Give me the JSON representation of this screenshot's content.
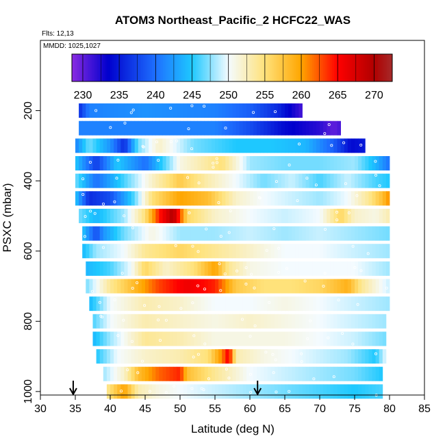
{
  "chart_data": {
    "type": "heatmap",
    "title": "ATOM3 Northeast_Pacific_2 HCFC22_WAS",
    "subtitle_flights": "Flts: 12,13",
    "subtitle_dates": "MMDD: 1025,1027",
    "xlabel": "Latitude (deg N)",
    "ylabel": "PSXC (mbar)",
    "xlim": [
      30,
      85
    ],
    "ylim": [
      1010,
      0
    ],
    "y_reversed": true,
    "x_ticks": [
      "30",
      "35",
      "40",
      "45",
      "50",
      "55",
      "60",
      "65",
      "70",
      "75",
      "80",
      "85"
    ],
    "y_ticks": [
      "200",
      "400",
      "600",
      "800",
      "1000"
    ],
    "colorbar": {
      "min": 228.5,
      "max": 272.5,
      "ticks": [
        "230",
        "235",
        "240",
        "245",
        "250",
        "255",
        "260",
        "265",
        "270"
      ],
      "stops": [
        {
          "v": 228.5,
          "c": "#8a2be2"
        },
        {
          "v": 233.5,
          "c": "#0000cd"
        },
        {
          "v": 240,
          "c": "#1e70ff"
        },
        {
          "v": 245,
          "c": "#1ec8ff"
        },
        {
          "v": 250,
          "c": "#f4fbff"
        },
        {
          "v": 255,
          "c": "#ffe27a"
        },
        {
          "v": 260,
          "c": "#ffa500"
        },
        {
          "v": 265,
          "c": "#ff0000"
        },
        {
          "v": 270,
          "c": "#b00000"
        },
        {
          "v": 272.5,
          "c": "#a52a2a"
        }
      ]
    },
    "markers_latitude": [
      34.7,
      61.1
    ],
    "rows": [
      {
        "p": 200,
        "x0": 35.5,
        "x1": 67.5,
        "knots": [
          [
            35.5,
            236
          ],
          [
            37,
            241
          ],
          [
            45,
            242
          ],
          [
            55,
            241
          ],
          [
            60,
            239
          ],
          [
            64,
            236
          ],
          [
            66,
            233
          ],
          [
            67.5,
            231
          ]
        ]
      },
      {
        "p": 250,
        "x0": 35.5,
        "x1": 73,
        "knots": [
          [
            35.5,
            241
          ],
          [
            45,
            241
          ],
          [
            55,
            241
          ],
          [
            60,
            238
          ],
          [
            65,
            234
          ],
          [
            70,
            232
          ],
          [
            72,
            230
          ],
          [
            73,
            231
          ]
        ]
      },
      {
        "p": 300,
        "x0": 35,
        "x1": 76.5,
        "knots": [
          [
            35,
            241
          ],
          [
            37,
            247
          ],
          [
            40,
            242
          ],
          [
            42,
            236
          ],
          [
            44,
            247
          ],
          [
            47,
            252
          ],
          [
            52,
            247
          ],
          [
            58,
            245
          ],
          [
            63,
            245
          ],
          [
            68,
            244
          ],
          [
            72,
            239
          ],
          [
            74.5,
            234
          ],
          [
            76.5,
            235
          ]
        ]
      },
      {
        "p": 350,
        "x0": 35,
        "x1": 80,
        "knots": [
          [
            35,
            245
          ],
          [
            38,
            237
          ],
          [
            41,
            245
          ],
          [
            45,
            240
          ],
          [
            50,
            251
          ],
          [
            56,
            255
          ],
          [
            60,
            248
          ],
          [
            65,
            247
          ],
          [
            70,
            247
          ],
          [
            75,
            248
          ],
          [
            78,
            244
          ],
          [
            80,
            240
          ]
        ]
      },
      {
        "p": 400,
        "x0": 35,
        "x1": 80,
        "knots": [
          [
            35,
            247
          ],
          [
            38,
            240
          ],
          [
            42,
            246
          ],
          [
            46,
            252
          ],
          [
            50,
            257
          ],
          [
            54,
            253
          ],
          [
            58,
            250
          ],
          [
            62,
            247
          ],
          [
            66,
            249
          ],
          [
            70,
            246
          ],
          [
            74,
            249
          ],
          [
            78,
            246
          ],
          [
            80,
            245
          ]
        ]
      },
      {
        "p": 450,
        "x0": 35,
        "x1": 80,
        "knots": [
          [
            35,
            245
          ],
          [
            37,
            236
          ],
          [
            40,
            238
          ],
          [
            43,
            245
          ],
          [
            46,
            255
          ],
          [
            50,
            260
          ],
          [
            54,
            258
          ],
          [
            58,
            252
          ],
          [
            62,
            250
          ],
          [
            66,
            249
          ],
          [
            70,
            248
          ],
          [
            74,
            250
          ],
          [
            77,
            254
          ],
          [
            79,
            258
          ],
          [
            80,
            261
          ]
        ]
      },
      {
        "p": 500,
        "x0": 35.5,
        "x1": 80,
        "knots": [
          [
            35.5,
            247
          ],
          [
            38,
            244
          ],
          [
            42,
            248
          ],
          [
            45,
            255
          ],
          [
            47,
            264
          ],
          [
            49,
            270
          ],
          [
            51,
            256
          ],
          [
            55,
            252
          ],
          [
            60,
            250
          ],
          [
            65,
            249
          ],
          [
            70,
            250
          ],
          [
            73,
            256
          ],
          [
            75,
            252
          ],
          [
            78,
            251
          ],
          [
            80,
            253
          ]
        ]
      },
      {
        "p": 550,
        "x0": 36,
        "x1": 80,
        "knots": [
          [
            36,
            245
          ],
          [
            38,
            238
          ],
          [
            39,
            242
          ],
          [
            42,
            247
          ],
          [
            46,
            251
          ],
          [
            50,
            248
          ],
          [
            55,
            248
          ],
          [
            60,
            249
          ],
          [
            65,
            248
          ],
          [
            70,
            249
          ],
          [
            75,
            248
          ],
          [
            80,
            247
          ]
        ]
      },
      {
        "p": 600,
        "x0": 36,
        "x1": 80,
        "knots": [
          [
            36,
            244
          ],
          [
            38,
            248
          ],
          [
            42,
            250
          ],
          [
            45,
            254
          ],
          [
            50,
            256
          ],
          [
            55,
            254
          ],
          [
            60,
            252
          ],
          [
            65,
            250
          ],
          [
            70,
            250
          ],
          [
            75,
            249
          ],
          [
            80,
            248
          ]
        ]
      },
      {
        "p": 650,
        "x0": 36.5,
        "x1": 80,
        "knots": [
          [
            36.5,
            244
          ],
          [
            40,
            246
          ],
          [
            43,
            250
          ],
          [
            45,
            256
          ],
          [
            48,
            252
          ],
          [
            52,
            255
          ],
          [
            55,
            260
          ],
          [
            57,
            254
          ],
          [
            60,
            251
          ],
          [
            65,
            250
          ],
          [
            70,
            250
          ],
          [
            75,
            250
          ],
          [
            80,
            248
          ]
        ]
      },
      {
        "p": 700,
        "x0": 36.5,
        "x1": 80,
        "knots": [
          [
            36.5,
            247
          ],
          [
            40,
            254
          ],
          [
            44,
            259
          ],
          [
            47,
            263
          ],
          [
            51,
            266
          ],
          [
            55,
            264
          ],
          [
            58,
            257
          ],
          [
            62,
            255
          ],
          [
            66,
            255
          ],
          [
            70,
            256
          ],
          [
            74,
            259
          ],
          [
            76,
            254
          ],
          [
            79,
            250
          ],
          [
            80,
            249
          ]
        ]
      },
      {
        "p": 750,
        "x0": 37,
        "x1": 80,
        "knots": [
          [
            37,
            244
          ],
          [
            40,
            250
          ],
          [
            45,
            253
          ],
          [
            50,
            252
          ],
          [
            55,
            250
          ],
          [
            60,
            250
          ],
          [
            65,
            251
          ],
          [
            70,
            250
          ],
          [
            75,
            249
          ],
          [
            80,
            248
          ]
        ]
      },
      {
        "p": 800,
        "x0": 37.5,
        "x1": 79.5,
        "knots": [
          [
            37.5,
            246
          ],
          [
            40,
            250
          ],
          [
            45,
            253
          ],
          [
            50,
            252
          ],
          [
            55,
            251
          ],
          [
            60,
            252
          ],
          [
            65,
            251
          ],
          [
            70,
            250
          ],
          [
            75,
            249
          ],
          [
            79.5,
            248
          ]
        ]
      },
      {
        "p": 850,
        "x0": 37.5,
        "x1": 79.5,
        "knots": [
          [
            37.5,
            244
          ],
          [
            40,
            248
          ],
          [
            45,
            254
          ],
          [
            50,
            253
          ],
          [
            55,
            251
          ],
          [
            60,
            251
          ],
          [
            65,
            251
          ],
          [
            70,
            250
          ],
          [
            75,
            249
          ],
          [
            79.5,
            247
          ]
        ]
      },
      {
        "p": 900,
        "x0": 38,
        "x1": 79.5,
        "knots": [
          [
            38,
            245
          ],
          [
            41,
            250
          ],
          [
            45,
            252
          ],
          [
            50,
            253
          ],
          [
            54,
            255
          ],
          [
            56,
            261
          ],
          [
            57,
            266
          ],
          [
            58,
            253
          ],
          [
            62,
            251
          ],
          [
            66,
            250
          ],
          [
            70,
            249
          ],
          [
            74,
            248
          ],
          [
            78,
            245
          ],
          [
            79.5,
            250
          ]
        ]
      },
      {
        "p": 950,
        "x0": 39,
        "x1": 79,
        "knots": [
          [
            39,
            248
          ],
          [
            42,
            252
          ],
          [
            44,
            258
          ],
          [
            47,
            262
          ],
          [
            50,
            264
          ],
          [
            51,
            258
          ],
          [
            55,
            254
          ],
          [
            60,
            250
          ],
          [
            65,
            249
          ],
          [
            70,
            248
          ],
          [
            75,
            247
          ],
          [
            79,
            245
          ]
        ]
      },
      {
        "p": 1000,
        "x0": 39.5,
        "x1": 79,
        "knots": [
          [
            39.5,
            254
          ],
          [
            42,
            260
          ],
          [
            44,
            253
          ],
          [
            47,
            251
          ],
          [
            50,
            250
          ],
          [
            55,
            249
          ],
          [
            60,
            248
          ],
          [
            65,
            247
          ],
          [
            70,
            246
          ],
          [
            75,
            245
          ],
          [
            79,
            246
          ]
        ]
      }
    ]
  }
}
